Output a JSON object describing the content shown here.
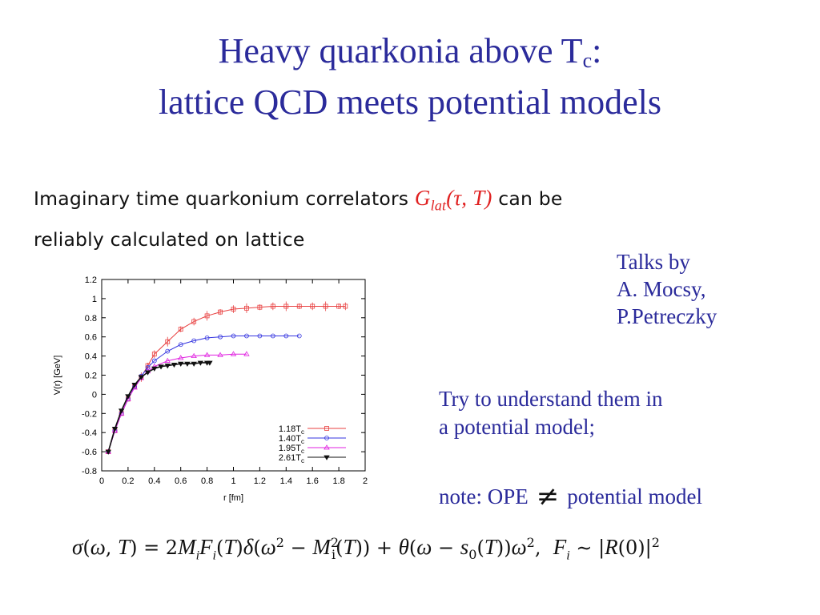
{
  "slide": {
    "title_line1_a": "Heavy quarkonia above T",
    "title_line1_sub": "c",
    "title_line1_b": ":",
    "title_line2": "lattice QCD meets potential models",
    "intro_a": "Imaginary time quarkonium correlators ",
    "intro_math": "G",
    "intro_math_sub": "lat",
    "intro_math_args": "(τ, T)",
    "intro_b": " can be",
    "intro_line2": "reliably calculated on lattice",
    "talks": [
      "Talks by",
      "A. Mocsy,",
      "P.Petreczky"
    ],
    "try_line1": "Try to understand them in",
    "try_line2": "a potential model;",
    "note_a": "note: OPE",
    "note_symbol": "≠",
    "note_b": "potential model",
    "formula": "σ(ω,T) = 2M_i F_i(T) δ(ω² − M_i²(T)) + θ(ω − s₀(T)) ω², F_i ∼ |R(0)|²"
  },
  "colors": {
    "title": "#2b2b9b",
    "math_red": "#e02020"
  },
  "chart_data": {
    "type": "scatter",
    "xlabel": "r [fm]",
    "ylabel": "V(r) [GeV]",
    "xlim": [
      0,
      2
    ],
    "ylim": [
      -0.8,
      1.2
    ],
    "xticks": [
      0,
      0.2,
      0.4,
      0.6,
      0.8,
      1,
      1.2,
      1.4,
      1.6,
      1.8,
      2
    ],
    "yticks": [
      -0.8,
      -0.6,
      -0.4,
      -0.2,
      0,
      0.2,
      0.4,
      0.6,
      0.8,
      1,
      1.2
    ],
    "legend_position": "bottom-right",
    "series": [
      {
        "name": "1.18T_c",
        "color": "#e84040",
        "marker": "square",
        "x": [
          0.05,
          0.1,
          0.15,
          0.2,
          0.25,
          0.3,
          0.35,
          0.4,
          0.5,
          0.6,
          0.7,
          0.8,
          0.9,
          1.0,
          1.1,
          1.2,
          1.3,
          1.4,
          1.5,
          1.6,
          1.7,
          1.8,
          1.85
        ],
        "y": [
          -0.6,
          -0.38,
          -0.2,
          -0.05,
          0.08,
          0.18,
          0.3,
          0.42,
          0.55,
          0.68,
          0.76,
          0.82,
          0.86,
          0.89,
          0.9,
          0.91,
          0.92,
          0.92,
          0.92,
          0.92,
          0.92,
          0.92,
          0.92
        ]
      },
      {
        "name": "1.40T_c",
        "color": "#3535e0",
        "marker": "circle",
        "x": [
          0.05,
          0.1,
          0.15,
          0.2,
          0.25,
          0.3,
          0.35,
          0.4,
          0.5,
          0.6,
          0.7,
          0.8,
          0.9,
          1.0,
          1.1,
          1.2,
          1.3,
          1.4,
          1.5
        ],
        "y": [
          -0.6,
          -0.38,
          -0.2,
          -0.05,
          0.08,
          0.19,
          0.28,
          0.35,
          0.45,
          0.52,
          0.56,
          0.59,
          0.6,
          0.61,
          0.61,
          0.61,
          0.61,
          0.61,
          0.61
        ]
      },
      {
        "name": "1.95T_c",
        "color": "#e020e0",
        "marker": "triangle",
        "x": [
          0.05,
          0.1,
          0.15,
          0.2,
          0.25,
          0.3,
          0.35,
          0.4,
          0.5,
          0.6,
          0.7,
          0.8,
          0.9,
          1.0,
          1.1
        ],
        "y": [
          -0.6,
          -0.38,
          -0.2,
          -0.05,
          0.07,
          0.17,
          0.24,
          0.29,
          0.35,
          0.38,
          0.4,
          0.41,
          0.41,
          0.42,
          0.42
        ]
      },
      {
        "name": "2.61T_c",
        "color": "#111111",
        "marker": "down-triangle",
        "x": [
          0.05,
          0.1,
          0.15,
          0.2,
          0.25,
          0.3,
          0.35,
          0.4,
          0.45,
          0.5,
          0.55,
          0.6,
          0.65,
          0.7,
          0.75,
          0.8,
          0.82
        ],
        "y": [
          -0.6,
          -0.36,
          -0.17,
          -0.02,
          0.1,
          0.18,
          0.23,
          0.27,
          0.29,
          0.3,
          0.31,
          0.32,
          0.32,
          0.32,
          0.33,
          0.33,
          0.33
        ]
      }
    ]
  }
}
